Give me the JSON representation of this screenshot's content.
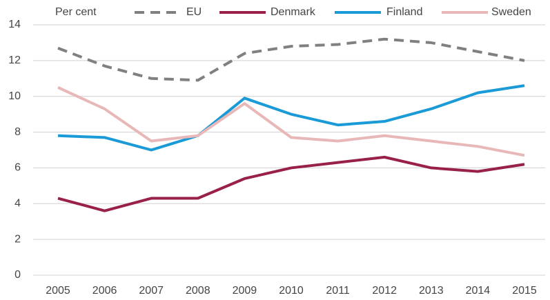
{
  "chart_data": {
    "type": "line",
    "y_label": "Per cent",
    "categories": [
      "2005",
      "2006",
      "2007",
      "2008",
      "2009",
      "2010",
      "2011",
      "2012",
      "2013",
      "2014",
      "2015"
    ],
    "series": [
      {
        "name": "EU",
        "color": "#808080",
        "dashed": true,
        "values": [
          12.7,
          11.7,
          11.0,
          10.9,
          12.4,
          12.8,
          12.9,
          13.2,
          13.0,
          12.5,
          12.0
        ]
      },
      {
        "name": "Denmark",
        "color": "#99204a",
        "values": [
          4.3,
          3.6,
          4.3,
          4.3,
          5.4,
          6.0,
          6.3,
          6.6,
          6.0,
          5.8,
          6.2
        ]
      },
      {
        "name": "Finland",
        "color": "#1a9ad6",
        "values": [
          7.8,
          7.7,
          7.0,
          7.8,
          9.9,
          9.0,
          8.4,
          8.6,
          9.3,
          10.2,
          10.6
        ]
      },
      {
        "name": "Sweden",
        "color": "#e8b8b8",
        "values": [
          10.5,
          9.3,
          7.5,
          7.8,
          9.6,
          7.7,
          7.5,
          7.8,
          7.5,
          7.2,
          6.7
        ]
      }
    ],
    "ylim": [
      0,
      14
    ],
    "yticks": [
      0,
      2,
      4,
      6,
      8,
      10,
      12,
      14
    ],
    "grid": true,
    "legend": "top"
  }
}
